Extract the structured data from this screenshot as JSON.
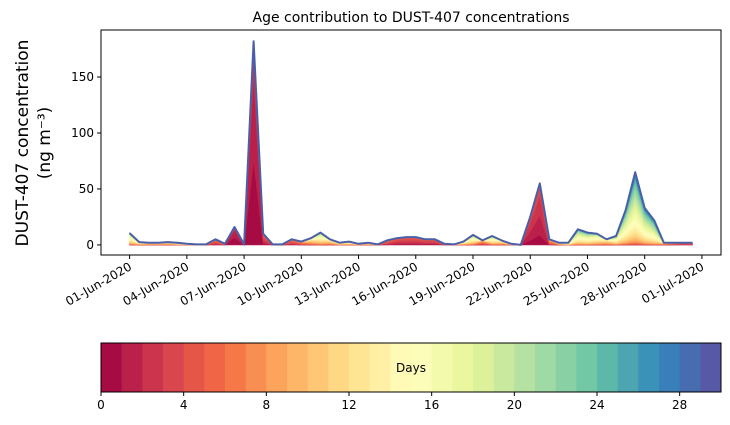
{
  "chart_data": {
    "type": "area",
    "stacked": true,
    "title": "Age contribution to DUST-407 concentrations",
    "ylabel_line1": "DUST-407 concentration",
    "ylabel_line2": "(ng m⁻³)",
    "xlabel": "",
    "start_date": "2020-06-01",
    "step_days": 0.5,
    "xlim_days": [
      -1.5,
      31
    ],
    "ylim": [
      -9,
      192
    ],
    "yticks": [
      0,
      50,
      100,
      150
    ],
    "xtick_days": [
      0,
      3,
      6,
      9,
      12,
      15,
      18,
      21,
      24,
      27,
      30
    ],
    "xtick_labels": [
      "01-Jun-2020",
      "04-Jun-2020",
      "07-Jun-2020",
      "10-Jun-2020",
      "13-Jun-2020",
      "16-Jun-2020",
      "19-Jun-2020",
      "22-Jun-2020",
      "25-Jun-2020",
      "28-Jun-2020",
      "01-Jul-2020"
    ],
    "total": [
      10.6,
      2.5,
      2,
      2,
      2.5,
      2,
      1,
      0.5,
      0.5,
      5,
      1,
      16,
      0.5,
      182,
      10,
      0.5,
      0.5,
      5,
      3,
      6,
      11,
      5,
      2,
      3,
      1,
      2,
      0.5,
      4,
      6,
      7,
      7,
      5,
      5,
      1,
      0.5,
      3,
      9,
      4,
      8,
      4,
      1,
      0,
      25,
      55,
      5,
      2,
      2,
      14,
      11,
      10,
      5,
      8,
      31,
      65,
      33,
      22,
      2,
      2,
      2,
      2
    ],
    "dominant_age_days": [
      14,
      12,
      10,
      10,
      10,
      12,
      12,
      12,
      12,
      4,
      8,
      1,
      8,
      1,
      3,
      6,
      6,
      4,
      6,
      10,
      14,
      10,
      12,
      12,
      10,
      10,
      10,
      4,
      3,
      3,
      3,
      3,
      3,
      6,
      8,
      12,
      14,
      6,
      14,
      10,
      10,
      10,
      2,
      2,
      6,
      10,
      14,
      16,
      16,
      14,
      10,
      15,
      17,
      18,
      18,
      18,
      8,
      6,
      4,
      4
    ],
    "colorbar": {
      "label": "Days",
      "range": [
        0,
        30
      ],
      "n_bins": 30,
      "ticks": [
        0,
        4,
        8,
        12,
        16,
        20,
        24,
        28
      ],
      "colormap_stops": [
        "#9e0142",
        "#d53e4f",
        "#f46d43",
        "#fdae61",
        "#fee08b",
        "#ffffbf",
        "#e6f598",
        "#abdda4",
        "#66c2a5",
        "#3288bd",
        "#5e4fa2"
      ]
    }
  }
}
